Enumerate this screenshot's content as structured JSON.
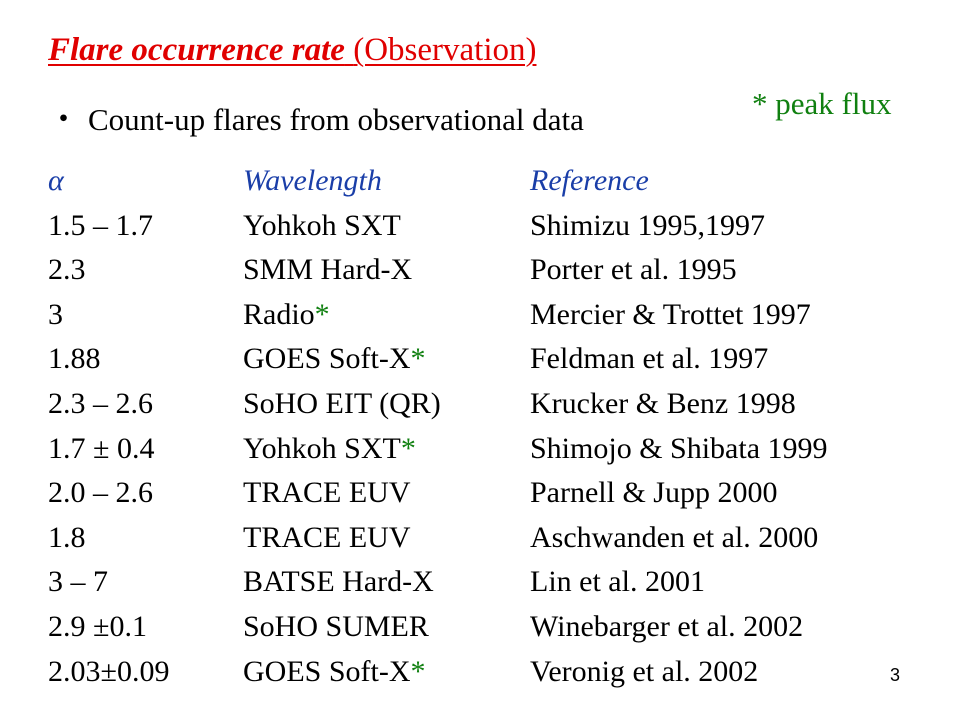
{
  "title": {
    "main": "Flare occurrence rate",
    "sub": "(Observation)"
  },
  "bullet": {
    "symbol": "・",
    "text": "Count-up flares from observational data"
  },
  "note": "* peak flux",
  "table": {
    "header": [
      "α",
      "Wavelength",
      "Reference"
    ],
    "rows": [
      {
        "alpha": "1.5 – 1.7",
        "wavelength": "Yohkoh SXT",
        "star": null,
        "reference": "Shimizu 1995,1997"
      },
      {
        "alpha": "2.3",
        "wavelength": "SMM Hard-X",
        "star": null,
        "reference": "Porter et al. 1995"
      },
      {
        "alpha": "3",
        "wavelength": "Radio",
        "star": "*",
        "reference": "Mercier & Trottet 1997"
      },
      {
        "alpha": "1.88",
        "wavelength": "GOES Soft-X",
        "star": "*",
        "reference": "Feldman et al. 1997"
      },
      {
        "alpha": "2.3 – 2.6",
        "wavelength": "SoHO EIT (QR)",
        "star": null,
        "reference": "Krucker & Benz 1998"
      },
      {
        "alpha": "1.7 ± 0.4",
        "wavelength": "Yohkoh SXT",
        "star": "*",
        "reference": "Shimojo & Shibata 1999"
      },
      {
        "alpha": "2.0 – 2.6",
        "wavelength": "TRACE EUV",
        "star": null,
        "reference": "Parnell & Jupp 2000"
      },
      {
        "alpha": "1.8",
        "wavelength": "TRACE EUV",
        "star": null,
        "reference": "Aschwanden et al. 2000"
      },
      {
        "alpha": "3 – 7",
        "wavelength": "BATSE Hard-X",
        "star": null,
        "reference": "Lin et al. 2001"
      },
      {
        "alpha": "2.9 ±0.1",
        "wavelength": "SoHO SUMER",
        "star": null,
        "reference": "Winebarger et al. 2002"
      },
      {
        "alpha": "2.03±0.09",
        "wavelength": "GOES Soft-X",
        "star": "*",
        "reference": "Veronig et al. 2002"
      }
    ]
  },
  "page_number": "3"
}
